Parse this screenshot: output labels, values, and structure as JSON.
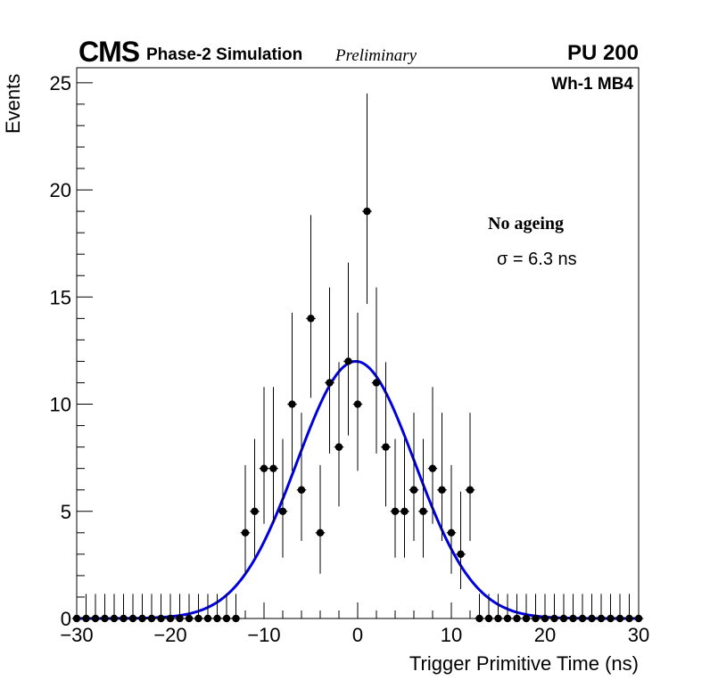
{
  "header": {
    "experiment": "CMS",
    "subtitle": "Phase-2 Simulation",
    "status": "Preliminary",
    "pileup": "PU 200",
    "chamber": "Wh-1 MB4"
  },
  "legend": {
    "condition": "No ageing",
    "resolution": "σ = 6.3 ns"
  },
  "colors": {
    "points": "#000000",
    "fit": "#0000dd",
    "axis": "#000000"
  },
  "chart_data": {
    "type": "scatter",
    "title": "",
    "xlabel": "Trigger Primitive Time (ns)",
    "ylabel": "Events",
    "xlim": [
      -30,
      30
    ],
    "ylim": [
      0,
      25.7
    ],
    "xticks": [
      -30,
      -20,
      -10,
      0,
      10,
      20,
      30
    ],
    "yticks": [
      0,
      5,
      10,
      15,
      20,
      25
    ],
    "xtick_labels": [
      "−30",
      "−20",
      "−10",
      "0",
      "10",
      "20",
      "30"
    ],
    "ytick_labels": [
      "0",
      "5",
      "10",
      "15",
      "20",
      "25"
    ],
    "bin_width": 1,
    "series": [
      {
        "name": "Events",
        "style": "points with errors",
        "x": [
          -30,
          -29,
          -28,
          -27,
          -26,
          -25,
          -24,
          -23,
          -22,
          -21,
          -20,
          -19,
          -18,
          -17,
          -16,
          -15,
          -14,
          -13,
          -12,
          -11,
          -10,
          -9,
          -8,
          -7,
          -6,
          -5,
          -4,
          -3,
          -2,
          -1,
          0,
          1,
          2,
          3,
          4,
          5,
          6,
          7,
          8,
          9,
          10,
          11,
          12,
          13,
          14,
          15,
          16,
          17,
          18,
          19,
          20,
          21,
          22,
          23,
          24,
          25,
          26,
          27,
          28,
          29,
          30
        ],
        "y": [
          0,
          0,
          0,
          0,
          0,
          0,
          0,
          0,
          0,
          0,
          0,
          0,
          0,
          0,
          0,
          0,
          0,
          0,
          4,
          5,
          7,
          7,
          5,
          10,
          6,
          14,
          4,
          11,
          8,
          12,
          10,
          19,
          11,
          8,
          5,
          5,
          6,
          5,
          7,
          6,
          4,
          3,
          6,
          0,
          0,
          0,
          0,
          0,
          0,
          0,
          0,
          0,
          0,
          0,
          0,
          0,
          0,
          0,
          0,
          0,
          0
        ],
        "y_err_up": [
          1.15,
          1.15,
          1.15,
          1.15,
          1.15,
          1.15,
          1.15,
          1.15,
          1.15,
          1.15,
          1.15,
          1.15,
          1.15,
          1.15,
          1.15,
          1.15,
          1.15,
          1.15,
          3.16,
          3.38,
          3.8,
          3.8,
          3.38,
          4.27,
          3.6,
          4.83,
          3.16,
          4.45,
          3.96,
          4.61,
          4.27,
          5.5,
          4.45,
          3.96,
          3.38,
          3.38,
          3.6,
          3.38,
          3.8,
          3.6,
          3.16,
          2.92,
          3.6,
          1.15,
          1.15,
          1.15,
          1.15,
          1.15,
          1.15,
          1.15,
          1.15,
          1.15,
          1.15,
          1.15,
          1.15,
          1.15,
          1.15,
          1.15,
          1.15,
          1.15,
          1.15
        ],
        "y_err_down": [
          0,
          0,
          0,
          0,
          0,
          0,
          0,
          0,
          0,
          0,
          0,
          0,
          0,
          0,
          0,
          0,
          0,
          0,
          1.91,
          2.16,
          2.58,
          2.58,
          2.16,
          3.11,
          2.38,
          3.7,
          1.91,
          3.3,
          2.77,
          3.46,
          3.11,
          4.32,
          3.3,
          2.77,
          2.16,
          2.16,
          2.38,
          2.16,
          2.58,
          2.38,
          1.91,
          1.63,
          2.38,
          0,
          0,
          0,
          0,
          0,
          0,
          0,
          0,
          0,
          0,
          0,
          0,
          0,
          0,
          0,
          0,
          0,
          0
        ]
      },
      {
        "name": "Gaussian fit",
        "style": "line",
        "amplitude": 12.0,
        "mean": -0.2,
        "sigma": 6.3,
        "x_range": [
          -30,
          30
        ]
      }
    ]
  }
}
